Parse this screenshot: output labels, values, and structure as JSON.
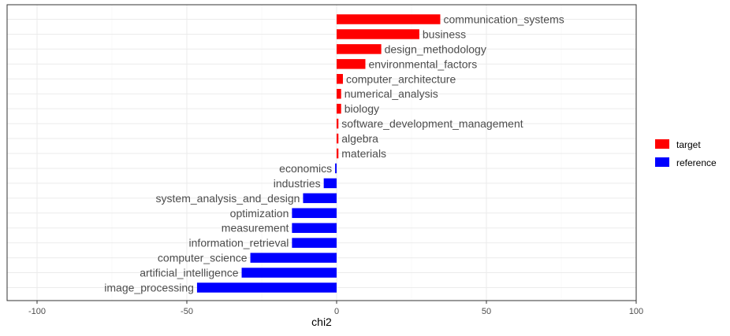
{
  "chart_data": {
    "type": "bar",
    "orientation": "horizontal",
    "xlabel": "chi2",
    "ylabel": "",
    "xlim": [
      -110,
      100
    ],
    "x_ticks": [
      -100,
      -50,
      0,
      50,
      100
    ],
    "grid": true,
    "legend": {
      "placement": "right",
      "entries": [
        {
          "label": "target",
          "color": "#ff0000"
        },
        {
          "label": "reference",
          "color": "#0000ff"
        }
      ]
    },
    "bars": [
      {
        "label": "communication_systems",
        "value": 34.6,
        "group": "target"
      },
      {
        "label": "business",
        "value": 27.6,
        "group": "target"
      },
      {
        "label": "design_methodology",
        "value": 14.9,
        "group": "target"
      },
      {
        "label": "environmental_factors",
        "value": 9.6,
        "group": "target"
      },
      {
        "label": "computer_architecture",
        "value": 2.1,
        "group": "target"
      },
      {
        "label": "numerical_analysis",
        "value": 1.5,
        "group": "target"
      },
      {
        "label": "biology",
        "value": 1.5,
        "group": "target"
      },
      {
        "label": "software_development_management",
        "value": 0.6,
        "group": "target"
      },
      {
        "label": "algebra",
        "value": 0.6,
        "group": "target"
      },
      {
        "label": "materials",
        "value": 0.6,
        "group": "target"
      },
      {
        "label": "economics",
        "value": -0.5,
        "group": "reference"
      },
      {
        "label": "industries",
        "value": -4.3,
        "group": "reference"
      },
      {
        "label": "system_analysis_and_design",
        "value": -11.2,
        "group": "reference"
      },
      {
        "label": "optimization",
        "value": -14.9,
        "group": "reference"
      },
      {
        "label": "measurement",
        "value": -14.9,
        "group": "reference"
      },
      {
        "label": "information_retrieval",
        "value": -14.9,
        "group": "reference"
      },
      {
        "label": "computer_science",
        "value": -28.8,
        "group": "reference"
      },
      {
        "label": "artificial_intelligence",
        "value": -31.7,
        "group": "reference"
      },
      {
        "label": "image_processing",
        "value": -46.6,
        "group": "reference"
      }
    ]
  }
}
